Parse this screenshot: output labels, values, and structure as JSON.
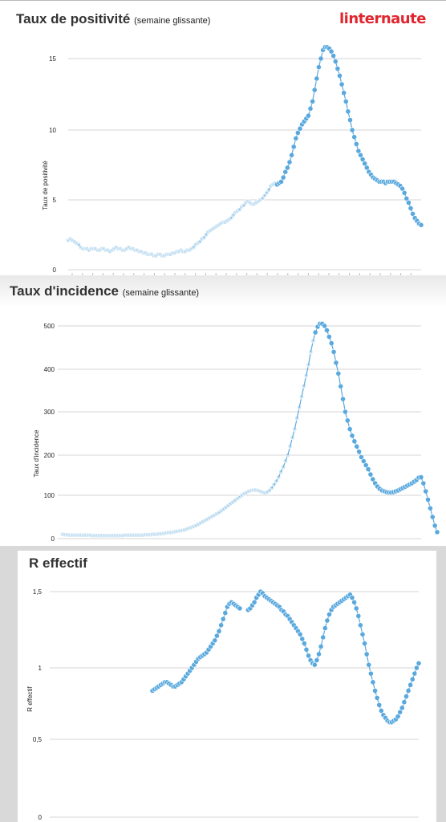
{
  "brand": "linternaute",
  "chart_data": [
    {
      "type": "scatter",
      "title": "Taux de positivité",
      "subtitle": "(semaine glissante)",
      "ylabel": "Taux de positivité",
      "xlabel": "",
      "ylim": [
        0,
        15.5
      ],
      "yticks": [
        "0",
        "5",
        "10",
        "15"
      ],
      "ytick_values": [
        0,
        5,
        10,
        15
      ],
      "grid": true,
      "color": "#5aa9de",
      "series": [
        {
          "x_index_start": 0,
          "values": [
            2.1,
            2.2,
            2.1,
            2.0,
            1.9,
            1.8,
            1.6,
            1.5,
            1.5,
            1.5,
            1.4,
            1.5,
            1.5,
            1.5,
            1.4,
            1.4,
            1.5,
            1.5,
            1.4,
            1.4,
            1.3,
            1.4,
            1.5,
            1.6,
            1.5,
            1.5,
            1.4,
            1.4,
            1.5,
            1.6,
            1.5,
            1.5,
            1.4,
            1.4,
            1.3,
            1.3,
            1.2,
            1.2,
            1.1,
            1.1,
            1.1,
            1.0,
            1.0,
            1.1,
            1.1,
            1.0,
            1.0,
            1.1,
            1.1,
            1.1,
            1.2,
            1.2,
            1.3,
            1.3,
            1.4,
            1.3,
            1.3,
            1.4,
            1.4,
            1.5,
            1.6,
            1.8,
            1.9,
            2.0,
            2.2,
            2.3,
            2.5,
            2.7,
            2.8,
            2.9,
            3.0,
            3.1,
            3.2,
            3.3,
            3.4,
            3.4,
            3.5,
            3.6,
            3.7,
            3.9,
            4.1,
            4.2,
            4.3,
            4.5,
            4.6,
            4.8,
            4.9,
            4.8,
            4.7,
            4.7,
            4.8,
            4.9,
            5.0,
            5.1,
            5.3,
            5.5,
            5.7,
            6.0,
            6.1,
            6.2,
            6.1,
            6.2,
            6.3,
            6.6,
            7.0,
            7.3,
            7.7,
            8.2,
            8.8,
            9.4,
            9.8,
            10.1,
            10.4,
            10.6,
            10.8,
            11.0,
            11.5,
            12.0,
            12.8,
            13.6,
            14.4,
            15.0,
            15.6,
            15.8,
            15.8,
            15.7,
            15.5,
            15.2,
            14.8,
            14.3,
            13.8,
            13.2,
            12.6,
            12.0,
            11.3,
            10.7,
            10.0,
            9.5,
            9.0,
            8.5,
            8.2,
            7.9,
            7.6,
            7.3,
            7.0,
            6.8,
            6.6,
            6.5,
            6.4,
            6.3,
            6.3,
            6.3,
            6.2,
            6.3,
            6.3,
            6.3,
            6.3,
            6.2,
            6.1,
            6.0,
            5.8,
            5.5,
            5.1,
            4.8,
            4.4,
            4.0,
            3.7,
            3.5,
            3.3,
            3.2
          ]
        }
      ]
    },
    {
      "type": "scatter",
      "title": "Taux d'incidence",
      "subtitle": "(semaine glissante)",
      "ylabel": "Taux d'incidence",
      "xlabel": "",
      "ylim": [
        0,
        510
      ],
      "yticks": [
        "0",
        "100",
        "200",
        "300",
        "400",
        "500"
      ],
      "ytick_values": [
        0,
        100,
        200,
        300,
        400,
        500
      ],
      "grid": true,
      "color": "#5aa9de",
      "series": [
        {
          "x_index_start": 0,
          "values": [
            10,
            9,
            9,
            8,
            8,
            8,
            8,
            8,
            8,
            8,
            8,
            8,
            8,
            7,
            7,
            7,
            7,
            7,
            7,
            7,
            7,
            7,
            7,
            7,
            7,
            7,
            7,
            8,
            8,
            8,
            8,
            8,
            8,
            8,
            8,
            8,
            9,
            9,
            9,
            10,
            10,
            10,
            11,
            11,
            12,
            13,
            14,
            14,
            15,
            16,
            17,
            18,
            19,
            20,
            22,
            24,
            26,
            28,
            30,
            33,
            36,
            39,
            42,
            45,
            48,
            51,
            54,
            57,
            60,
            64,
            68,
            72,
            76,
            80,
            84,
            88,
            92,
            96,
            100,
            104,
            107,
            110,
            112,
            113,
            113,
            112,
            110,
            108,
            106,
            108,
            112,
            118,
            126,
            135,
            145,
            158,
            170,
            185,
            200,
            220,
            240,
            260,
            285,
            310,
            335,
            360,
            385,
            410,
            440,
            465,
            485,
            498,
            505,
            505,
            500,
            490,
            475,
            460,
            440,
            415,
            390,
            360,
            330,
            300,
            280,
            260,
            245,
            232,
            220,
            208,
            195,
            185,
            175,
            165,
            152,
            140,
            130,
            122,
            116,
            112,
            110,
            108,
            107,
            107,
            108,
            110,
            112,
            115,
            118,
            121,
            124,
            127,
            130,
            134,
            138,
            144,
            145,
            130,
            110,
            90,
            70,
            50,
            30,
            15
          ]
        }
      ]
    },
    {
      "type": "scatter",
      "title": "R effectif",
      "subtitle": "",
      "ylabel": "R effectif",
      "xlabel": "",
      "ylim": [
        0,
        1.55
      ],
      "yticks": [
        "0",
        "0,5",
        "1",
        "1,5"
      ],
      "ytick_values": [
        0,
        0.5,
        1,
        1.5
      ],
      "grid": true,
      "color": "#5aa9de",
      "series": [
        {
          "x_index_start": 28,
          "values": [
            0.84,
            0.85,
            0.86,
            0.87,
            0.88,
            0.89,
            0.9,
            0.9,
            0.89,
            0.88,
            0.87,
            0.87,
            0.88,
            0.89,
            0.9,
            0.92,
            0.94,
            0.96,
            0.98,
            1.0,
            1.02,
            1.04,
            1.06,
            1.07,
            1.08,
            1.09,
            1.1,
            1.12,
            1.14,
            1.16,
            1.18,
            1.21,
            1.24,
            1.28,
            1.32,
            1.36,
            1.4,
            1.42,
            1.43,
            1.42,
            1.41,
            1.4,
            1.39,
            null,
            null,
            null,
            1.38,
            1.39,
            1.41,
            1.43,
            1.46,
            1.48,
            1.5,
            1.49,
            1.47,
            1.46,
            1.45,
            1.44,
            1.43,
            1.42,
            1.41,
            1.4,
            1.38,
            1.37,
            1.35,
            1.34,
            1.32,
            1.3,
            1.28,
            1.26,
            1.24,
            1.22,
            1.19,
            1.16,
            1.12,
            1.08,
            1.05,
            1.03,
            1.02,
            1.05,
            1.09,
            1.14,
            1.2,
            1.26,
            1.31,
            1.35,
            1.38,
            1.4,
            1.41,
            1.42,
            1.43,
            1.44,
            1.45,
            1.46,
            1.47,
            1.48,
            1.46,
            1.43,
            1.39,
            1.34,
            1.28,
            1.22,
            1.16,
            1.09,
            1.02,
            0.96,
            0.9,
            0.84,
            0.79,
            0.74,
            0.7,
            0.67,
            0.65,
            0.63,
            0.62,
            0.62,
            0.63,
            0.64,
            0.66,
            0.69,
            0.72,
            0.76,
            0.8,
            0.84,
            0.88,
            0.92,
            0.96,
            1.0,
            1.03
          ]
        }
      ]
    }
  ]
}
